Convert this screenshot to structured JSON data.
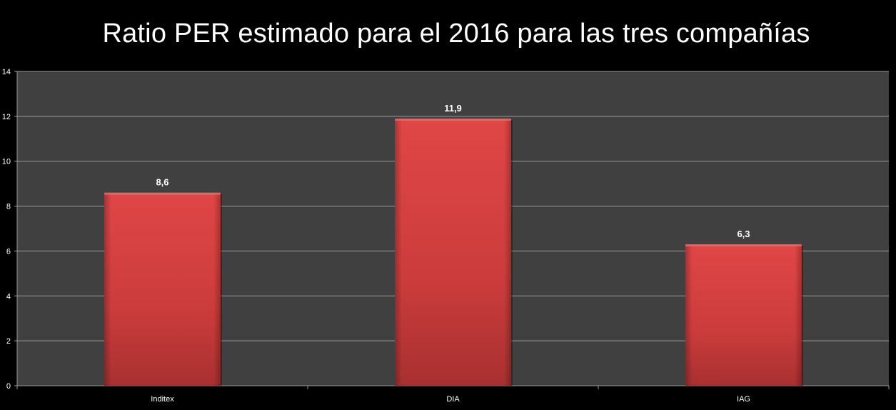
{
  "chart_data": {
    "type": "bar",
    "title": "Ratio PER estimado para el 2016 para las tres compañías",
    "categories": [
      "Inditex",
      "DIA",
      "IAG"
    ],
    "values": [
      8.6,
      11.9,
      6.3
    ],
    "value_labels": [
      "8,6",
      "11,9",
      "6,3"
    ],
    "xlabel": "",
    "ylabel": "",
    "ylim": [
      0,
      14
    ],
    "yticks": [
      0,
      2,
      4,
      6,
      8,
      10,
      12,
      14
    ],
    "grid": true,
    "legend": "none",
    "colors": {
      "background": "#000000",
      "plot_area": "#404040",
      "bar": "#d94141",
      "bar_dark": "#a83030",
      "gridline": "#9a9a9a",
      "axis_text": "#ffffff",
      "data_label": "#ffffff"
    }
  }
}
